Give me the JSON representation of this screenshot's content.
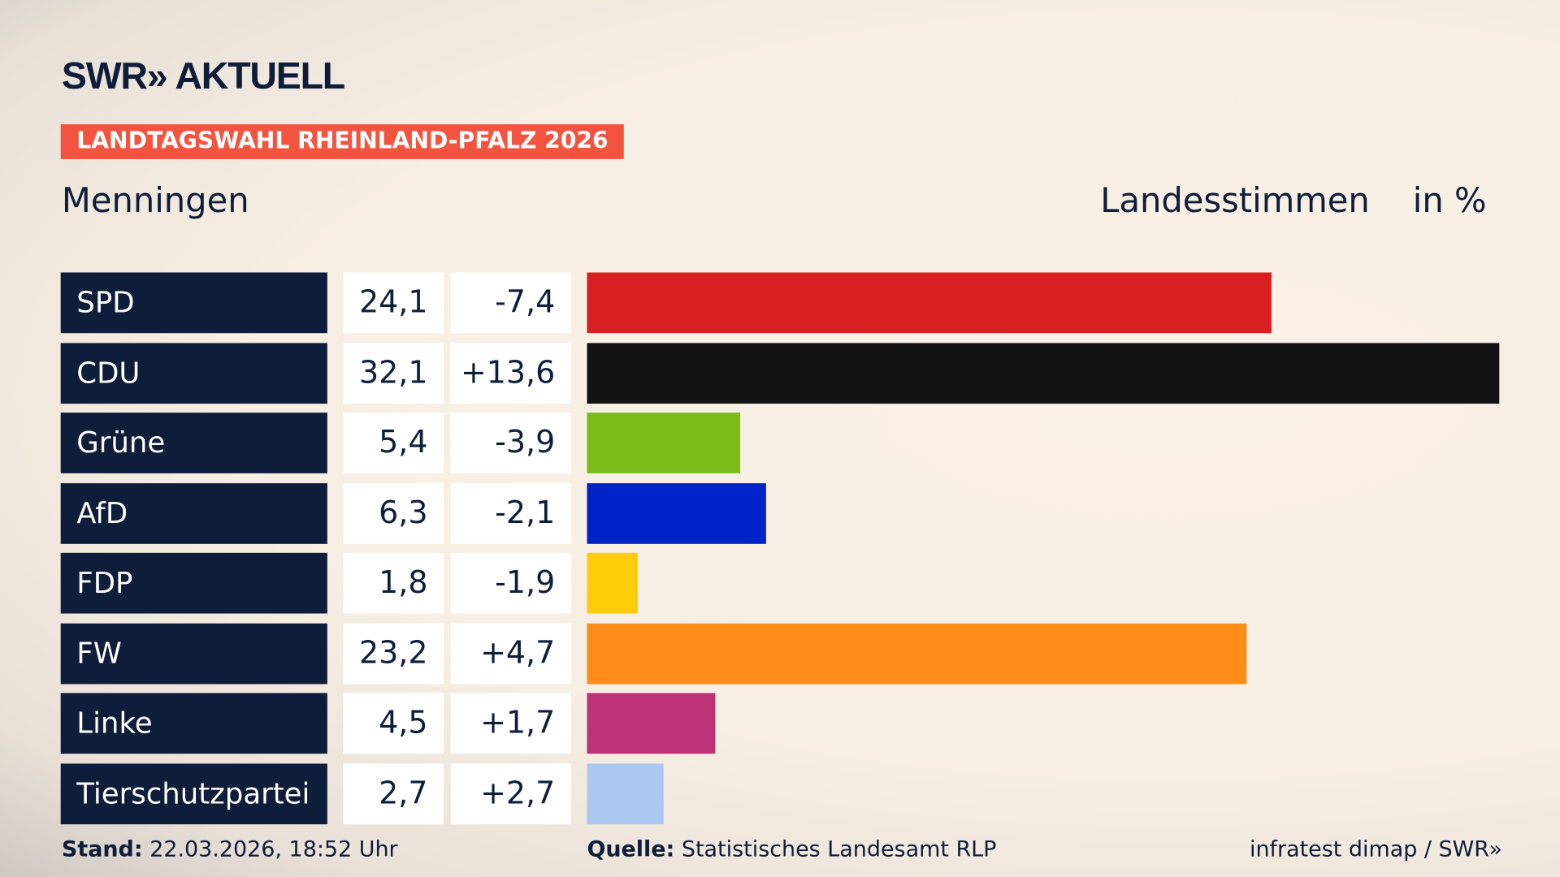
{
  "brand": {
    "logo": "SWR» AKTUELL"
  },
  "badge": "LANDTAGSWAHL RHEINLAND-PFALZ 2026",
  "place": "Menningen",
  "header": {
    "label": "Landesstimmen",
    "unit": "in %"
  },
  "chart_data": {
    "type": "bar",
    "orientation": "horizontal",
    "categories": [
      "SPD",
      "CDU",
      "Grüne",
      "AfD",
      "FDP",
      "FW",
      "Linke",
      "Tierschutzpartei"
    ],
    "values": [
      24.1,
      32.1,
      5.4,
      6.3,
      1.8,
      23.2,
      4.5,
      2.7
    ],
    "value_labels": [
      "24,1",
      "32,1",
      "5,4",
      "6,3",
      "1,8",
      "23,2",
      "4,5",
      "2,7"
    ],
    "diff_labels": [
      "-7,4",
      "+13,6",
      "-3,9",
      "-2,1",
      "-1,9",
      "+4,7",
      "+1,7",
      "+2,7"
    ],
    "colors": [
      "#d81f22",
      "#121212",
      "#7abd1b",
      "#0022c8",
      "#ffcc0a",
      "#ff8c19",
      "#bc3275",
      "#acc8f0"
    ]
  },
  "footer": {
    "stand_label": "Stand:",
    "stand_value": "22.03.2026, 18:52 Uhr",
    "source_label": "Quelle:",
    "source_value": "Statistisches Landesamt RLP",
    "credit": "infratest dimap / SWR»"
  }
}
